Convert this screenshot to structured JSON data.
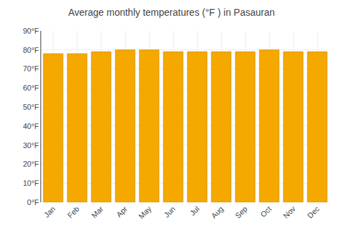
{
  "chart_data": {
    "type": "bar",
    "title": "Average monthly temperatures (°F ) in Pasauran",
    "categories": [
      "Jan",
      "Feb",
      "Mar",
      "Apr",
      "May",
      "Jun",
      "Jul",
      "Aug",
      "Sep",
      "Oct",
      "Nov",
      "Dec"
    ],
    "values": [
      78,
      78,
      79,
      80,
      80,
      79,
      79,
      79,
      79,
      80,
      79,
      79
    ],
    "color": "#F5A800",
    "ylim": [
      0,
      90
    ],
    "yticks": [
      {
        "value": 0,
        "label": "0°F"
      },
      {
        "value": 10,
        "label": "10°F"
      },
      {
        "value": 20,
        "label": "20°F"
      },
      {
        "value": 30,
        "label": "30°F"
      },
      {
        "value": 40,
        "label": "40°F"
      },
      {
        "value": 50,
        "label": "50°F"
      },
      {
        "value": 60,
        "label": "60°F"
      },
      {
        "value": 70,
        "label": "70°F"
      },
      {
        "value": 80,
        "label": "80°F"
      },
      {
        "value": 90,
        "label": "90°F"
      }
    ],
    "grid": true
  }
}
